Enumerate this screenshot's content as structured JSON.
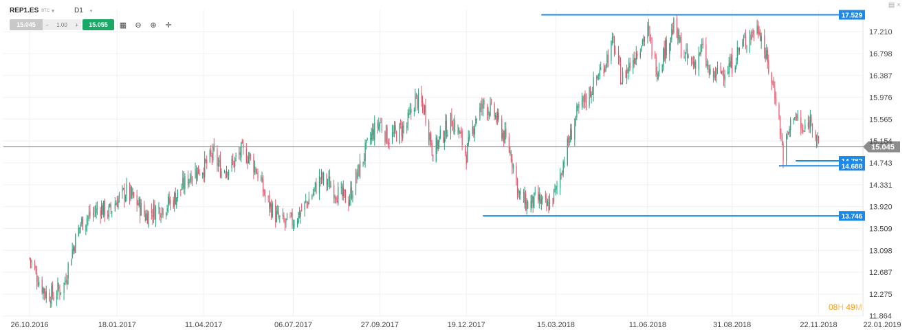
{
  "toolbar": {
    "symbol": "REP1.ES",
    "currency": "BTC",
    "timeframe": "D1",
    "sell_price": "15.045",
    "quantity": "1.00",
    "qty_minus": "−",
    "qty_plus": "+",
    "buy_price": "15.055",
    "icons": [
      "candles-icon",
      "zoom-out-icon",
      "zoom-in-icon",
      "crosshair-icon"
    ]
  },
  "window": {
    "minimize": "▤",
    "close": "×"
  },
  "timer": {
    "hours": "08",
    "h_label": "H",
    "minutes": "49",
    "m_label": "M"
  },
  "colors": {
    "up": "#26a17b",
    "down": "#e0586e",
    "level": "#1e88e5",
    "current": "#8c8c8c",
    "grid": "#f0f0f0"
  },
  "chart_data": {
    "type": "candlestick",
    "ylim": [
      11.864,
      17.62
    ],
    "y_ticks": [
      "17.210",
      "16.798",
      "16.387",
      "15.976",
      "15.565",
      "15.154",
      "14.743",
      "14.331",
      "13.920",
      "13.509",
      "13.098",
      "12.687",
      "12.275",
      "11.864"
    ],
    "x_ticks": [
      "26.10.2016",
      "18.01.2017",
      "11.04.2017",
      "06.07.2017",
      "27.09.2017",
      "19.12.2017",
      "15.03.2018",
      "11.06.2018",
      "31.08.2018",
      "22.11.2018",
      "22.01.2019"
    ],
    "current_price": 15.045,
    "horizontal_levels": [
      {
        "value": 17.529,
        "label": "17.529",
        "x_start": "01.03.2018"
      },
      {
        "value": 14.782,
        "label": "14.782",
        "x_start": "31.10.2018"
      },
      {
        "value": 14.688,
        "label": "14.688",
        "x_start": "15.10.2018"
      },
      {
        "value": 13.746,
        "label": "13.746",
        "x_start": "04.01.2018"
      }
    ],
    "close_path": [
      [
        "26.10.2016",
        12.95
      ],
      [
        "01.11.2016",
        12.65
      ],
      [
        "10.11.2016",
        12.3
      ],
      [
        "18.11.2016",
        12.25
      ],
      [
        "28.11.2016",
        12.45
      ],
      [
        "05.12.2016",
        13.05
      ],
      [
        "14.12.2016",
        13.6
      ],
      [
        "22.12.2016",
        13.75
      ],
      [
        "02.01.2017",
        13.9
      ],
      [
        "10.01.2017",
        13.8
      ],
      [
        "18.01.2017",
        14.05
      ],
      [
        "27.01.2017",
        14.2
      ],
      [
        "06.02.2017",
        14.0
      ],
      [
        "14.02.2017",
        13.75
      ],
      [
        "22.02.2017",
        13.85
      ],
      [
        "03.03.2017",
        13.9
      ],
      [
        "13.03.2017",
        14.05
      ],
      [
        "22.03.2017",
        14.3
      ],
      [
        "30.03.2017",
        14.55
      ],
      [
        "11.04.2017",
        14.65
      ],
      [
        "20.04.2017",
        14.9
      ],
      [
        "28.04.2017",
        14.6
      ],
      [
        "08.05.2017",
        14.7
      ],
      [
        "17.05.2017",
        14.95
      ],
      [
        "25.05.2017",
        14.85
      ],
      [
        "02.06.2017",
        14.55
      ],
      [
        "09.06.2017",
        14.1
      ],
      [
        "19.06.2017",
        13.75
      ],
      [
        "27.06.2017",
        13.6
      ],
      [
        "06.07.2017",
        13.65
      ],
      [
        "14.07.2017",
        13.85
      ],
      [
        "24.07.2017",
        14.15
      ],
      [
        "01.08.2017",
        14.45
      ],
      [
        "10.08.2017",
        14.35
      ],
      [
        "18.08.2017",
        14.15
      ],
      [
        "28.08.2017",
        14.05
      ],
      [
        "05.09.2017",
        14.5
      ],
      [
        "13.09.2017",
        14.95
      ],
      [
        "20.09.2017",
        15.3
      ],
      [
        "27.09.2017",
        15.5
      ],
      [
        "05.10.2017",
        15.2
      ],
      [
        "13.10.2017",
        15.3
      ],
      [
        "23.10.2017",
        15.45
      ],
      [
        "31.10.2017",
        15.95
      ],
      [
        "09.11.2017",
        15.75
      ],
      [
        "17.11.2017",
        14.95
      ],
      [
        "27.11.2017",
        15.3
      ],
      [
        "05.12.2017",
        15.55
      ],
      [
        "12.12.2017",
        15.3
      ],
      [
        "19.12.2017",
        14.9
      ],
      [
        "28.12.2017",
        15.6
      ],
      [
        "05.01.2018",
        15.85
      ],
      [
        "15.01.2018",
        15.65
      ],
      [
        "23.01.2018",
        15.3
      ],
      [
        "31.01.2018",
        14.9
      ],
      [
        "08.02.2018",
        14.1
      ],
      [
        "16.02.2018",
        13.95
      ],
      [
        "26.02.2018",
        14.05
      ],
      [
        "06.03.2018",
        13.9
      ],
      [
        "15.03.2018",
        14.2
      ],
      [
        "23.03.2018",
        14.85
      ],
      [
        "03.04.2018",
        15.6
      ],
      [
        "11.04.2018",
        15.9
      ],
      [
        "20.04.2018",
        16.2
      ],
      [
        "30.04.2018",
        16.6
      ],
      [
        "09.05.2018",
        17.0
      ],
      [
        "17.05.2018",
        16.3
      ],
      [
        "25.05.2018",
        16.6
      ],
      [
        "04.06.2018",
        17.0
      ],
      [
        "11.06.2018",
        17.2
      ],
      [
        "20.06.2018",
        16.5
      ],
      [
        "28.06.2018",
        16.9
      ],
      [
        "06.07.2018",
        17.3
      ],
      [
        "16.07.2018",
        16.75
      ],
      [
        "25.07.2018",
        16.6
      ],
      [
        "02.08.2018",
        16.9
      ],
      [
        "10.08.2018",
        16.35
      ],
      [
        "20.08.2018",
        16.45
      ],
      [
        "31.08.2018",
        16.6
      ],
      [
        "07.09.2018",
        16.9
      ],
      [
        "17.09.2018",
        17.15
      ],
      [
        "26.09.2018",
        17.3
      ],
      [
        "04.10.2018",
        16.6
      ],
      [
        "12.10.2018",
        16.0
      ],
      [
        "19.10.2018",
        14.9
      ],
      [
        "29.10.2018",
        15.7
      ],
      [
        "07.11.2018",
        15.3
      ],
      [
        "15.11.2018",
        15.6
      ],
      [
        "22.11.2018",
        15.045
      ]
    ]
  }
}
